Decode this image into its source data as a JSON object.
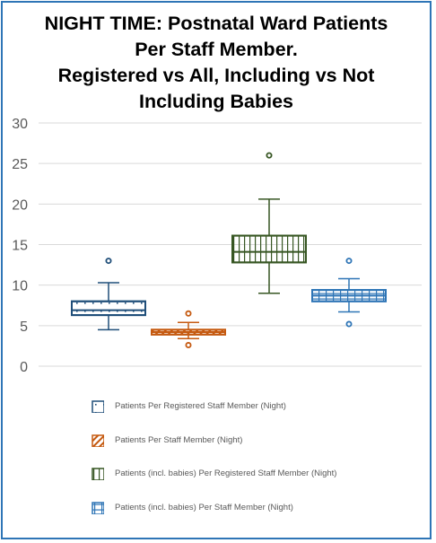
{
  "chart_data": {
    "type": "boxplot",
    "title_lines": [
      "NIGHT TIME: Postnatal Ward Patients",
      "Per Staff Member.",
      "Registered vs All, Including vs Not",
      "Including Babies"
    ],
    "ylim": [
      0,
      30
    ],
    "yticks": [
      0,
      5,
      10,
      15,
      20,
      25,
      30
    ],
    "grid": true,
    "legend_position": "bottom",
    "series": [
      {
        "name": "Patients Per Registered  Staff Member (Night)",
        "color": "#1f4e79",
        "pattern": "dots",
        "min": 4.5,
        "q1": 6.3,
        "median": 6.9,
        "q3": 8.0,
        "max": 10.3,
        "outliers": [
          13.0
        ]
      },
      {
        "name": "Patients Per Staff Member (Night)",
        "color": "#c55a11",
        "pattern": "diagonal",
        "min": 3.4,
        "q1": 3.9,
        "median": 4.2,
        "q3": 4.5,
        "max": 5.4,
        "outliers": [
          6.5,
          2.6
        ]
      },
      {
        "name": "Patients (incl. babies) Per Registered  Staff Member (Night)",
        "color": "#375623",
        "pattern": "vertical",
        "min": 9.0,
        "q1": 12.8,
        "median": 14.1,
        "q3": 16.1,
        "max": 20.6,
        "outliers": [
          26.0
        ]
      },
      {
        "name": "Patients (incl. babies) Per Staff Member (Night)",
        "color": "#2e75b6",
        "pattern": "grid",
        "min": 6.7,
        "q1": 8.0,
        "median": 8.7,
        "q3": 9.4,
        "max": 10.8,
        "outliers": [
          13.0,
          5.2
        ]
      }
    ]
  }
}
